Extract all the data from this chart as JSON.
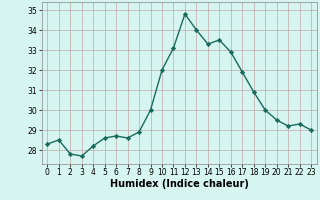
{
  "x": [
    0,
    1,
    2,
    3,
    4,
    5,
    6,
    7,
    8,
    9,
    10,
    11,
    12,
    13,
    14,
    15,
    16,
    17,
    18,
    19,
    20,
    21,
    22,
    23
  ],
  "y": [
    28.3,
    28.5,
    27.8,
    27.7,
    28.2,
    28.6,
    28.7,
    28.6,
    28.9,
    30.0,
    32.0,
    33.1,
    34.8,
    34.0,
    33.3,
    33.5,
    32.9,
    31.9,
    30.9,
    30.0,
    29.5,
    29.2,
    29.3,
    29.0
  ],
  "xlabel": "Humidex (Indice chaleur)",
  "xlim": [
    -0.5,
    23.5
  ],
  "ylim": [
    27.3,
    35.4
  ],
  "yticks": [
    28,
    29,
    30,
    31,
    32,
    33,
    34,
    35
  ],
  "xticks": [
    0,
    1,
    2,
    3,
    4,
    5,
    6,
    7,
    8,
    9,
    10,
    11,
    12,
    13,
    14,
    15,
    16,
    17,
    18,
    19,
    20,
    21,
    22,
    23
  ],
  "line_color": "#1a6b5e",
  "marker": "D",
  "marker_size": 2.2,
  "bg_color": "#d6f5f0",
  "grid_color": "#c0a8a8",
  "line_width": 1.0,
  "tick_fontsize": 5.5,
  "xlabel_fontsize": 7.0
}
